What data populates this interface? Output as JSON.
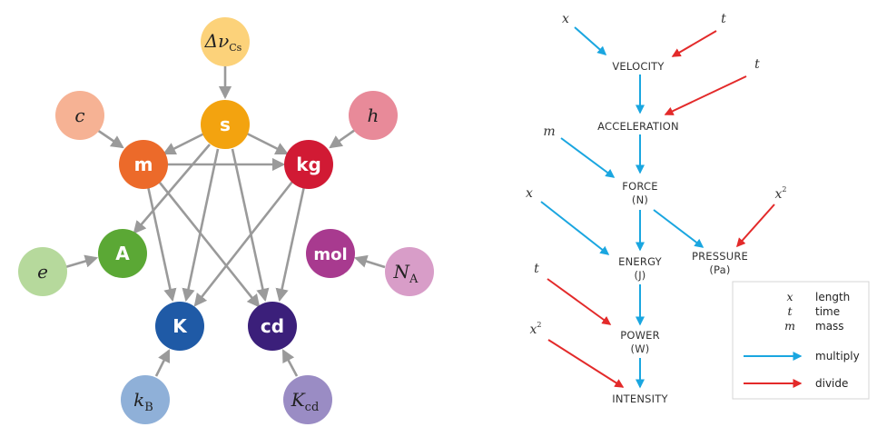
{
  "si_diagram": {
    "base_units": [
      {
        "id": "s",
        "label": "s",
        "color": "#f3a30f"
      },
      {
        "id": "m",
        "label": "m",
        "color": "#ec6a2a"
      },
      {
        "id": "kg",
        "label": "kg",
        "color": "#d11a34"
      },
      {
        "id": "A",
        "label": "A",
        "color": "#5ba835"
      },
      {
        "id": "mol",
        "label": "mol",
        "color": "#a83a8f"
      },
      {
        "id": "K",
        "label": "K",
        "color": "#1f5aa6"
      },
      {
        "id": "cd",
        "label": "cd",
        "color": "#3b1f7a"
      }
    ],
    "constants": [
      {
        "id": "dnu",
        "label": "Δν",
        "sub": "Cs",
        "color": "#fcd27a"
      },
      {
        "id": "c",
        "label": "c",
        "sub": "",
        "color": "#f6b294"
      },
      {
        "id": "h",
        "label": "h",
        "sub": "",
        "color": "#e88a99"
      },
      {
        "id": "e",
        "label": "e",
        "sub": "",
        "color": "#b6d99c"
      },
      {
        "id": "NA",
        "label": "N",
        "sub": "A",
        "color": "#d89dc8"
      },
      {
        "id": "kB",
        "label": "k",
        "sub": "B",
        "color": "#8fb0d8"
      },
      {
        "id": "Kcd",
        "label": "K",
        "sub": "cd",
        "color": "#9a8cc4"
      }
    ]
  },
  "flow_diagram": {
    "quantities": [
      {
        "id": "velocity",
        "label": "VELOCITY",
        "unit": ""
      },
      {
        "id": "acceleration",
        "label": "ACCELERATION",
        "unit": ""
      },
      {
        "id": "force",
        "label": "FORCE",
        "unit": "(N)"
      },
      {
        "id": "energy",
        "label": "ENERGY",
        "unit": "(J)"
      },
      {
        "id": "pressure",
        "label": "PRESSURE",
        "unit": "(Pa)"
      },
      {
        "id": "power",
        "label": "POWER",
        "unit": "(W)"
      },
      {
        "id": "intensity",
        "label": "INTENSITY",
        "unit": ""
      }
    ],
    "inputs": [
      {
        "id": "x1",
        "label": "x"
      },
      {
        "id": "t1",
        "label": "t"
      },
      {
        "id": "t2",
        "label": "t"
      },
      {
        "id": "m1",
        "label": "m"
      },
      {
        "id": "x2",
        "label": "x"
      },
      {
        "id": "xsq1",
        "label": "x",
        "sup": "2"
      },
      {
        "id": "t3",
        "label": "t"
      },
      {
        "id": "xsq2",
        "label": "x",
        "sup": "2"
      }
    ],
    "legend": {
      "vars": [
        {
          "sym": "x",
          "meaning": "length"
        },
        {
          "sym": "t",
          "meaning": "time"
        },
        {
          "sym": "m",
          "meaning": "mass"
        }
      ],
      "multiply_label": "multiply",
      "divide_label": "divide"
    },
    "colors": {
      "multiply": "#1aa6e0",
      "divide": "#e32a2a",
      "si_arrow": "#9a9a9a"
    }
  }
}
